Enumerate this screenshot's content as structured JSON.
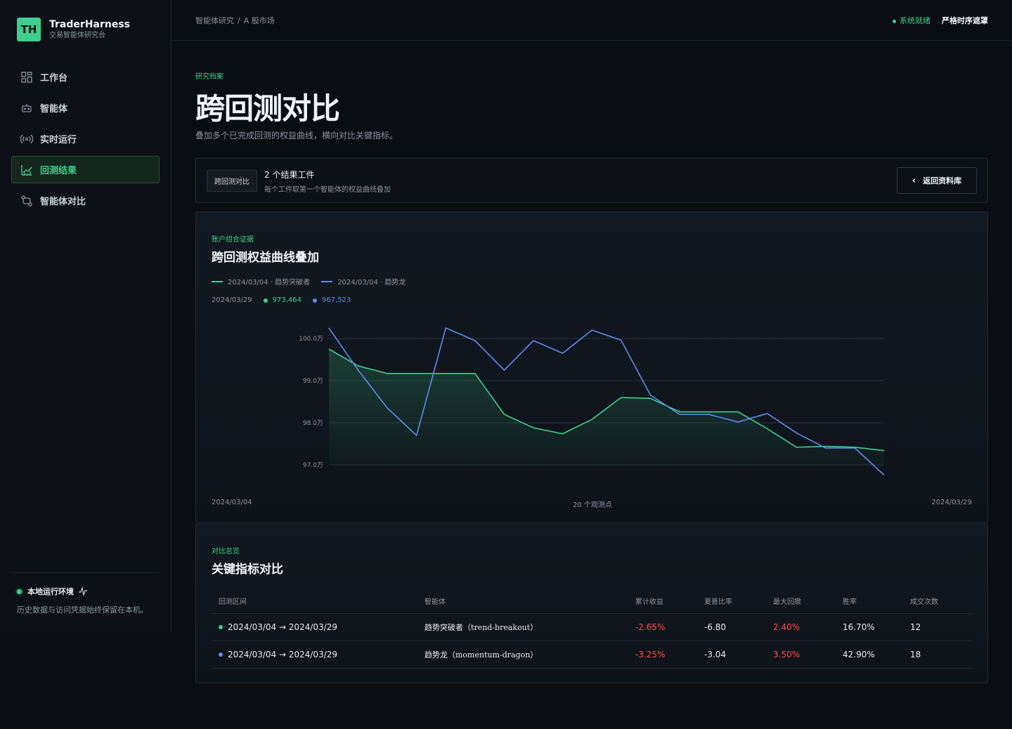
{
  "brand": {
    "logo": "TH",
    "name": "TraderHarness",
    "subtitle": "交易智能体研究台"
  },
  "nav": [
    {
      "label": "工作台",
      "icon": "grid-icon",
      "active": false
    },
    {
      "label": "智能体",
      "icon": "robot-icon",
      "active": false
    },
    {
      "label": "实时运行",
      "icon": "broadcast-icon",
      "active": false
    },
    {
      "label": "回测结果",
      "icon": "chart-icon",
      "active": true
    },
    {
      "label": "智能体对比",
      "icon": "compare-icon",
      "active": false
    }
  ],
  "sidebar_footer": {
    "env_label": "本地运行环境",
    "note": "历史数据与访问凭据始终保留在本机。"
  },
  "breadcrumb": {
    "root": "智能体研究",
    "separator": "/",
    "current": "A 股市场"
  },
  "status": {
    "system": "系统就绪",
    "mode": "严格时序遮罩"
  },
  "header": {
    "eyebrow": "研究档案",
    "title": "跨回测对比",
    "description": "叠加多个已完成回测的权益曲线，横向对比关键指标。"
  },
  "artifact": {
    "tag": "跨回测对比",
    "title": "2 个结果工件",
    "subtitle": "每个工件取第一个智能体的权益曲线叠加",
    "back_label": "返回资料库"
  },
  "chart_panel": {
    "eyebrow": "账户组合证据",
    "title": "跨回测权益曲线叠加"
  },
  "chart_data": {
    "type": "line",
    "series": [
      {
        "name": "2024/03/04 · 趋势突破者",
        "color": "#3ecf8e",
        "values": [
          99.75,
          99.35,
          99.17,
          99.17,
          99.17,
          99.17,
          98.2,
          97.88,
          97.74,
          98.08,
          98.6,
          98.58,
          98.26,
          98.26,
          98.26,
          97.86,
          97.42,
          97.44,
          97.42,
          97.34
        ]
      },
      {
        "name": "2024/03/04 · 趋势龙",
        "color": "#5b8def",
        "values": [
          100.25,
          99.25,
          98.35,
          97.7,
          100.25,
          99.95,
          99.25,
          99.95,
          99.65,
          100.2,
          99.96,
          98.66,
          98.2,
          98.2,
          98.02,
          98.22,
          97.76,
          97.4,
          97.4,
          96.76
        ]
      }
    ],
    "y_ticks": [
      "100.0万",
      "99.0万",
      "98.0万",
      "97.0万"
    ],
    "y_tick_values": [
      100,
      99,
      98,
      97
    ],
    "ylim": [
      96.5,
      100.5
    ],
    "x_start": "2024/03/04",
    "x_end": "2024/03/29",
    "x_center_label": "20 个观测点",
    "readout": {
      "date": "2024/03/29",
      "values": [
        "973,464",
        "967,523"
      ]
    },
    "grid": true,
    "legend": "top-left"
  },
  "table_panel": {
    "eyebrow": "对比总览",
    "title": "关键指标对比"
  },
  "table": {
    "headers": [
      "回测区间",
      "智能体",
      "累计收益",
      "夏普比率",
      "最大回撤",
      "胜率",
      "成交次数"
    ],
    "rows": [
      {
        "color": "#3ecf8e",
        "range": "2024/03/04 → 2024/03/29",
        "agent": "趋势突破者（trend-breakout）",
        "return": "-2.65%",
        "sharpe": "-6.80",
        "drawdown": "2.40%",
        "winrate": "16.70%",
        "trades": "12"
      },
      {
        "color": "#5b8def",
        "range": "2024/03/04 → 2024/03/29",
        "agent": "趋势龙（momentum-dragon）",
        "return": "-3.25%",
        "sharpe": "-3.04",
        "drawdown": "3.50%",
        "winrate": "42.90%",
        "trades": "18"
      }
    ]
  }
}
